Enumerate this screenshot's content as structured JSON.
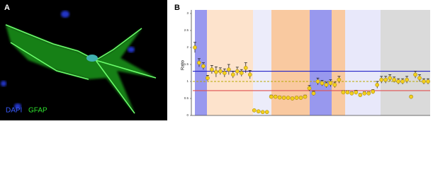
{
  "panels": {
    "a": {
      "label": "A",
      "stain_1": "DAPI",
      "stain_2": "GFAP"
    },
    "b": {
      "label": "B"
    }
  },
  "chart_data": {
    "type": "scatter",
    "y_label": "Ratio",
    "categories": [
      null,
      null,
      null,
      null,
      null,
      null,
      null,
      null,
      null,
      null,
      null,
      null,
      null,
      null,
      null,
      null,
      null,
      null,
      null,
      null,
      null,
      null,
      null,
      null,
      null,
      null,
      null,
      null,
      null,
      null,
      null,
      null,
      null,
      null,
      null,
      null,
      null,
      null,
      null,
      null,
      null,
      null,
      null,
      null,
      null,
      null,
      null,
      null,
      null,
      null,
      null,
      null,
      null,
      null,
      null,
      null
    ],
    "values": [
      2.0,
      1.55,
      1.45,
      1.1,
      1.35,
      1.28,
      1.3,
      1.25,
      1.35,
      1.2,
      1.3,
      1.25,
      1.4,
      1.2,
      0.15,
      0.12,
      0.1,
      0.1,
      0.55,
      0.55,
      0.53,
      0.52,
      0.52,
      0.5,
      0.52,
      0.52,
      0.55,
      0.8,
      0.65,
      1.0,
      0.95,
      0.9,
      0.95,
      0.9,
      1.05,
      0.68,
      0.68,
      0.65,
      0.68,
      0.6,
      0.65,
      0.65,
      0.7,
      0.9,
      1.05,
      1.05,
      1.1,
      1.05,
      1.0,
      1.0,
      1.05,
      0.55,
      1.2,
      1.1,
      1.0,
      1.0
    ],
    "errors": [
      0.15,
      0.12,
      0.1,
      0.08,
      0.12,
      0.15,
      0.1,
      0.12,
      0.15,
      0.1,
      0.12,
      0.1,
      0.15,
      0.12,
      0.03,
      0.03,
      0.02,
      0.02,
      0.05,
      0.04,
      0.04,
      0.04,
      0.03,
      0.04,
      0.04,
      0.04,
      0.05,
      0.08,
      0.06,
      0.1,
      0.08,
      0.08,
      0.1,
      0.08,
      0.1,
      0.05,
      0.05,
      0.05,
      0.06,
      0.05,
      0.05,
      0.05,
      0.06,
      0.1,
      0.1,
      0.1,
      0.1,
      0.08,
      0.08,
      0.08,
      0.1,
      0.04,
      0.1,
      0.1,
      0.08,
      0.08
    ],
    "color": "#f2cf1d",
    "ylim": [
      0,
      3
    ],
    "yticks": [
      0,
      0.5,
      1,
      1.5,
      2,
      2.5,
      3
    ],
    "reference_lines": [
      {
        "value": 1.3,
        "color": "#2424c8"
      },
      {
        "value": 1.0,
        "color": "#b8a800"
      },
      {
        "value": 0.73,
        "color": "#e05050"
      }
    ]
  }
}
